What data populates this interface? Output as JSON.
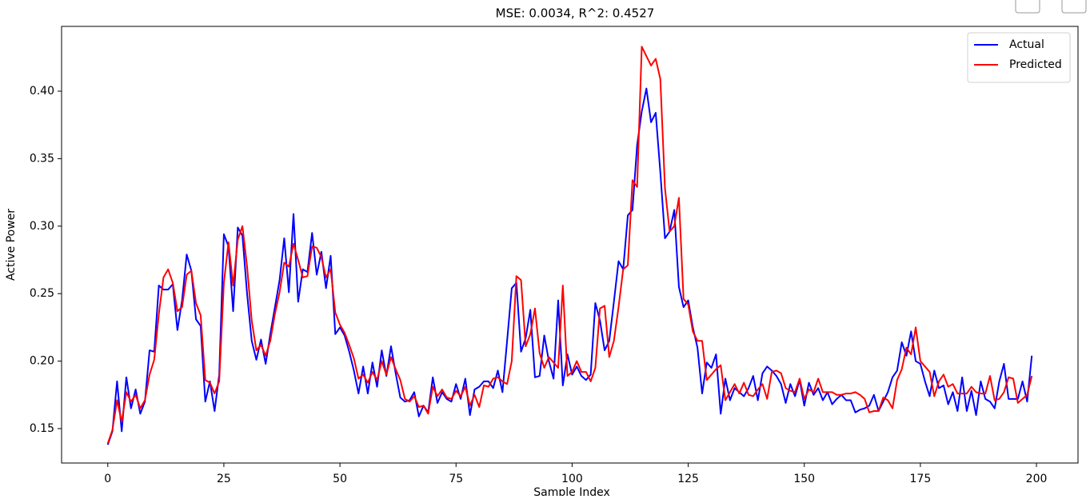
{
  "chart_data": {
    "type": "line",
    "title": "MSE: 0.0034, R^2: 0.4527",
    "xlabel": "Sample Index",
    "ylabel": "Active Power",
    "x": [
      0,
      1,
      2,
      3,
      4,
      5,
      6,
      7,
      8,
      9,
      10,
      11,
      12,
      13,
      14,
      15,
      16,
      17,
      18,
      19,
      20,
      21,
      22,
      23,
      24,
      25,
      26,
      27,
      28,
      29,
      30,
      31,
      32,
      33,
      34,
      35,
      36,
      37,
      38,
      39,
      40,
      41,
      42,
      43,
      44,
      45,
      46,
      47,
      48,
      49,
      50,
      51,
      52,
      53,
      54,
      55,
      56,
      57,
      58,
      59,
      60,
      61,
      62,
      63,
      64,
      65,
      66,
      67,
      68,
      69,
      70,
      71,
      72,
      73,
      74,
      75,
      76,
      77,
      78,
      79,
      80,
      81,
      82,
      83,
      84,
      85,
      86,
      87,
      88,
      89,
      90,
      91,
      92,
      93,
      94,
      95,
      96,
      97,
      98,
      99,
      100,
      101,
      102,
      103,
      104,
      105,
      106,
      107,
      108,
      109,
      110,
      111,
      112,
      113,
      114,
      115,
      116,
      117,
      118,
      119,
      120,
      121,
      122,
      123,
      124,
      125,
      126,
      127,
      128,
      129,
      130,
      131,
      132,
      133,
      134,
      135,
      136,
      137,
      138,
      139,
      140,
      141,
      142,
      143,
      144,
      145,
      146,
      147,
      148,
      149,
      150,
      151,
      152,
      153,
      154,
      155,
      156,
      157,
      158,
      159,
      160,
      161,
      162,
      163,
      164,
      165,
      166,
      167,
      168,
      169,
      170,
      171,
      172,
      173,
      174,
      175,
      176,
      177,
      178,
      179,
      180,
      181,
      182,
      183,
      184,
      185,
      186,
      187,
      188,
      189,
      190,
      191,
      192,
      193,
      194,
      195,
      196,
      197,
      198,
      199
    ],
    "series": [
      {
        "name": "Actual",
        "color": "#0000ff",
        "values": [
          0.138,
          0.148,
          0.185,
          0.148,
          0.188,
          0.165,
          0.179,
          0.161,
          0.17,
          0.208,
          0.207,
          0.256,
          0.253,
          0.253,
          0.257,
          0.223,
          0.245,
          0.279,
          0.267,
          0.231,
          0.226,
          0.17,
          0.185,
          0.163,
          0.19,
          0.294,
          0.285,
          0.237,
          0.299,
          0.293,
          0.25,
          0.215,
          0.201,
          0.216,
          0.198,
          0.22,
          0.24,
          0.26,
          0.291,
          0.251,
          0.309,
          0.244,
          0.268,
          0.266,
          0.295,
          0.264,
          0.281,
          0.254,
          0.278,
          0.22,
          0.225,
          0.219,
          0.207,
          0.193,
          0.176,
          0.196,
          0.176,
          0.199,
          0.181,
          0.208,
          0.189,
          0.211,
          0.191,
          0.173,
          0.17,
          0.171,
          0.177,
          0.159,
          0.167,
          0.162,
          0.188,
          0.169,
          0.177,
          0.172,
          0.17,
          0.183,
          0.172,
          0.187,
          0.16,
          0.179,
          0.181,
          0.185,
          0.185,
          0.18,
          0.193,
          0.177,
          0.215,
          0.254,
          0.258,
          0.207,
          0.217,
          0.238,
          0.188,
          0.189,
          0.219,
          0.2,
          0.187,
          0.245,
          0.182,
          0.205,
          0.19,
          0.196,
          0.189,
          0.186,
          0.19,
          0.243,
          0.23,
          0.208,
          0.215,
          0.244,
          0.274,
          0.268,
          0.308,
          0.312,
          0.36,
          0.385,
          0.402,
          0.377,
          0.384,
          0.34,
          0.291,
          0.296,
          0.312,
          0.255,
          0.24,
          0.245,
          0.225,
          0.21,
          0.176,
          0.199,
          0.195,
          0.205,
          0.161,
          0.187,
          0.171,
          0.18,
          0.177,
          0.174,
          0.18,
          0.189,
          0.171,
          0.191,
          0.196,
          0.193,
          0.189,
          0.183,
          0.169,
          0.183,
          0.174,
          0.186,
          0.167,
          0.184,
          0.175,
          0.18,
          0.171,
          0.177,
          0.168,
          0.172,
          0.175,
          0.171,
          0.171,
          0.162,
          0.164,
          0.165,
          0.167,
          0.175,
          0.163,
          0.17,
          0.177,
          0.188,
          0.193,
          0.214,
          0.204,
          0.222,
          0.2,
          0.198,
          0.185,
          0.174,
          0.193,
          0.18,
          0.182,
          0.168,
          0.177,
          0.163,
          0.188,
          0.163,
          0.178,
          0.16,
          0.185,
          0.172,
          0.17,
          0.165,
          0.185,
          0.198,
          0.172,
          0.172,
          0.172,
          0.185,
          0.17,
          0.204
        ]
      },
      {
        "name": "Predicted",
        "color": "#ff0000",
        "values": [
          0.139,
          0.149,
          0.171,
          0.155,
          0.177,
          0.17,
          0.175,
          0.165,
          0.171,
          0.19,
          0.201,
          0.235,
          0.262,
          0.268,
          0.258,
          0.237,
          0.24,
          0.264,
          0.267,
          0.243,
          0.234,
          0.186,
          0.184,
          0.176,
          0.185,
          0.258,
          0.288,
          0.256,
          0.29,
          0.3,
          0.27,
          0.23,
          0.208,
          0.212,
          0.204,
          0.215,
          0.235,
          0.251,
          0.273,
          0.27,
          0.287,
          0.275,
          0.262,
          0.263,
          0.285,
          0.284,
          0.277,
          0.262,
          0.268,
          0.236,
          0.227,
          0.221,
          0.212,
          0.202,
          0.187,
          0.19,
          0.184,
          0.192,
          0.186,
          0.2,
          0.19,
          0.203,
          0.194,
          0.186,
          0.172,
          0.17,
          0.174,
          0.166,
          0.167,
          0.161,
          0.181,
          0.174,
          0.179,
          0.173,
          0.172,
          0.178,
          0.174,
          0.181,
          0.167,
          0.175,
          0.166,
          0.182,
          0.181,
          0.187,
          0.188,
          0.185,
          0.183,
          0.2,
          0.263,
          0.26,
          0.211,
          0.22,
          0.239,
          0.206,
          0.195,
          0.203,
          0.199,
          0.195,
          0.256,
          0.189,
          0.192,
          0.2,
          0.192,
          0.192,
          0.185,
          0.195,
          0.239,
          0.241,
          0.203,
          0.215,
          0.24,
          0.268,
          0.271,
          0.334,
          0.329,
          0.433,
          0.426,
          0.419,
          0.424,
          0.409,
          0.328,
          0.296,
          0.3,
          0.321,
          0.246,
          0.242,
          0.222,
          0.215,
          0.215,
          0.186,
          0.19,
          0.194,
          0.197,
          0.171,
          0.177,
          0.183,
          0.176,
          0.184,
          0.175,
          0.174,
          0.179,
          0.183,
          0.172,
          0.192,
          0.193,
          0.191,
          0.18,
          0.178,
          0.177,
          0.187,
          0.172,
          0.179,
          0.177,
          0.187,
          0.177,
          0.177,
          0.177,
          0.175,
          0.175,
          0.176,
          0.176,
          0.177,
          0.175,
          0.172,
          0.162,
          0.163,
          0.163,
          0.173,
          0.171,
          0.165,
          0.186,
          0.194,
          0.21,
          0.205,
          0.225,
          0.2,
          0.196,
          0.192,
          0.174,
          0.185,
          0.19,
          0.181,
          0.183,
          0.176,
          0.176,
          0.176,
          0.181,
          0.177,
          0.176,
          0.176,
          0.189,
          0.171,
          0.172,
          0.177,
          0.188,
          0.187,
          0.169,
          0.172,
          0.175,
          0.189
        ]
      }
    ],
    "xlim": [
      -9.95,
      208.95
    ],
    "ylim": [
      0.1245,
      0.448
    ],
    "xticks": [
      0,
      25,
      50,
      75,
      100,
      125,
      150,
      175,
      200
    ],
    "yticks": [
      0.15,
      {
        "value": 0.2,
        "label": "0.20"
      },
      0.25,
      {
        "value": 0.3,
        "label": "0.30"
      },
      0.35,
      {
        "value": 0.4,
        "label": "0.40"
      }
    ],
    "grid": false,
    "legend": "upper right"
  }
}
